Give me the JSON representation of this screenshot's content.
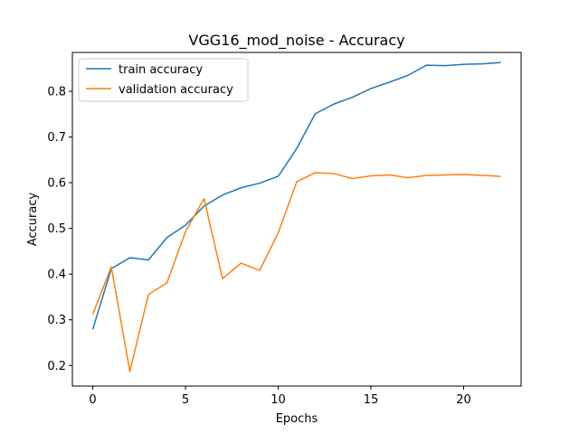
{
  "chart_data": {
    "type": "line",
    "title": "VGG16_mod_noise - Accuracy",
    "xlabel": "Epochs",
    "ylabel": "Accuracy",
    "xlim": [
      -1.1,
      23.1
    ],
    "ylim": [
      0.155,
      0.885
    ],
    "xticks": [
      0,
      5,
      10,
      15,
      20
    ],
    "yticks": [
      0.2,
      0.3,
      0.4,
      0.5,
      0.6,
      0.7,
      0.8
    ],
    "grid": false,
    "legend_position": "top-left",
    "x": [
      0,
      1,
      2,
      3,
      4,
      5,
      6,
      7,
      8,
      9,
      10,
      11,
      12,
      13,
      14,
      15,
      16,
      17,
      18,
      19,
      20,
      21,
      22
    ],
    "series": [
      {
        "name": "train accuracy",
        "color": "#1f77b4",
        "values": [
          0.279,
          0.412,
          0.436,
          0.431,
          0.48,
          0.507,
          0.549,
          0.573,
          0.589,
          0.599,
          0.614,
          0.675,
          0.751,
          0.772,
          0.787,
          0.806,
          0.82,
          0.835,
          0.857,
          0.856,
          0.859,
          0.86,
          0.863
        ]
      },
      {
        "name": "validation accuracy",
        "color": "#ff7f0e",
        "values": [
          0.312,
          0.416,
          0.187,
          0.355,
          0.381,
          0.493,
          0.565,
          0.39,
          0.424,
          0.408,
          0.49,
          0.602,
          0.622,
          0.62,
          0.609,
          0.615,
          0.617,
          0.611,
          0.616,
          0.617,
          0.618,
          0.616,
          0.614
        ]
      }
    ]
  }
}
